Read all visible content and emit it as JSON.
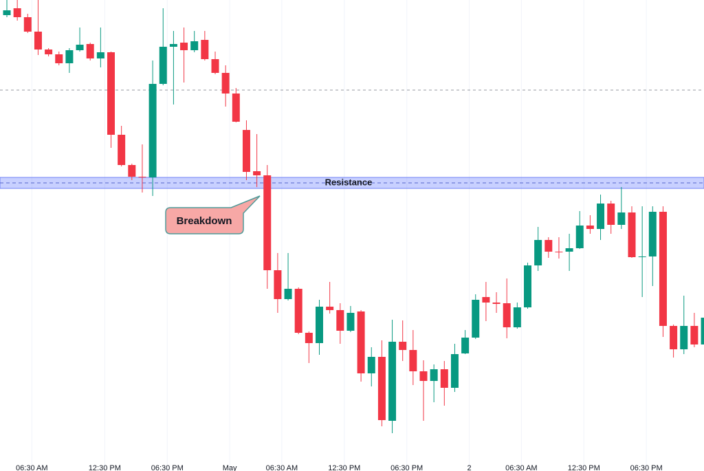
{
  "chart_data": {
    "type": "candlestick",
    "categories": [
      null,
      null,
      "06:30 AM",
      null,
      null,
      null,
      null,
      null,
      null,
      "12:30 PM",
      null,
      null,
      null,
      null,
      null,
      "06:30 PM",
      null,
      null,
      null,
      null,
      null,
      "May",
      null,
      null,
      null,
      null,
      "06:30 AM",
      null,
      null,
      null,
      null,
      null,
      "12:30 PM",
      null,
      null,
      null,
      null,
      null,
      "06:30 PM",
      null,
      null,
      null,
      null,
      null,
      "2",
      null,
      null,
      null,
      null,
      "06:30 AM",
      null,
      null,
      null,
      null,
      null,
      "12:30 PM",
      null,
      null,
      null,
      null,
      null,
      "06:30 PM",
      null,
      null,
      null,
      null,
      null,
      null
    ],
    "open": [
      663,
      673,
      660,
      639,
      613,
      606,
      593,
      612,
      621,
      600,
      609,
      489,
      445,
      428,
      427,
      563,
      617,
      623,
      612,
      627,
      599,
      579,
      549,
      496,
      436,
      430,
      292,
      250,
      265,
      201,
      186,
      239,
      234,
      204,
      232,
      142,
      166,
      73,
      188,
      176,
      145,
      131,
      148,
      121,
      171,
      194,
      253,
      245,
      244,
      209,
      238,
      299,
      336,
      319,
      319,
      324,
      357,
      352,
      389,
      358,
      376,
      311,
      312,
      377,
      211,
      177,
      211,
      184
    ],
    "high": [
      685,
      685,
      665,
      685,
      615,
      610,
      615,
      645,
      623,
      645,
      610,
      502,
      447,
      475,
      597,
      673,
      640,
      645,
      640,
      640,
      610,
      590,
      557,
      510,
      490,
      445,
      317,
      317,
      267,
      203,
      249,
      275,
      244,
      240,
      234,
      180,
      190,
      220,
      219,
      205,
      161,
      155,
      160,
      185,
      205,
      257,
      275,
      260,
      280,
      245,
      303,
      355,
      340,
      340,
      345,
      378,
      372,
      402,
      393,
      413,
      385,
      385,
      385,
      385,
      213,
      255,
      230,
      240
    ],
    "low": [
      660,
      655,
      637,
      605,
      603,
      590,
      579,
      610,
      597,
      587,
      470,
      443,
      423,
      405,
      400,
      561,
      533,
      565,
      609,
      597,
      577,
      530,
      507,
      423,
      413,
      265,
      230,
      248,
      199,
      157,
      169,
      229,
      185,
      202,
      130,
      123,
      65,
      55,
      160,
      125,
      73,
      100,
      95,
      115,
      170,
      192,
      218,
      230,
      193,
      207,
      236,
      291,
      310,
      309,
      291,
      323,
      345,
      336,
      345,
      352,
      310,
      253,
      269,
      195,
      165,
      170,
      180,
      182
    ],
    "close": [
      670,
      660,
      639,
      613,
      606,
      593,
      612,
      620,
      600,
      609,
      489,
      445,
      428,
      427,
      563,
      617,
      621,
      612,
      625,
      599,
      579,
      549,
      508,
      435,
      430,
      292,
      250,
      265,
      201,
      186,
      239,
      234,
      204,
      230,
      142,
      166,
      74,
      188,
      176,
      145,
      131,
      148,
      121,
      170,
      194,
      249,
      245,
      243,
      209,
      238,
      299,
      336,
      319,
      318,
      324,
      357,
      352,
      389,
      358,
      376,
      311,
      312,
      377,
      211,
      177,
      211,
      184,
      223
    ],
    "up_color": "#089981",
    "down_color": "#f23645",
    "ylim": [
      0,
      685
    ],
    "reference_line": 554,
    "resistance": {
      "label": "Resistance",
      "low": 411,
      "high": 427,
      "level": 419
    },
    "annotation": "Breakdown",
    "grid": true
  }
}
